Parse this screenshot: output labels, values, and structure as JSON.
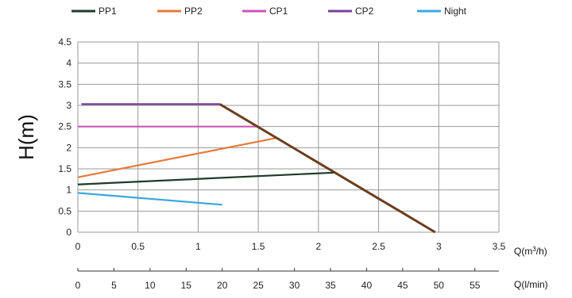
{
  "chart_data": {
    "type": "line",
    "title": "",
    "ylabel": "H(m)",
    "xlabel": "Q(m³/h)",
    "xlabel_secondary": "Q(l/min)",
    "xlim": [
      0,
      3.5
    ],
    "ylim": [
      0,
      4.5
    ],
    "secondary_xlim": [
      0,
      58.33
    ],
    "x_ticks": [
      "0",
      "0.5",
      "1",
      "1.5",
      "2",
      "2.5",
      "3",
      "3.5"
    ],
    "y_ticks": [
      "0",
      "0.5",
      "1",
      "1.5",
      "2",
      "2.5",
      "3",
      "3.5",
      "4",
      "4.5"
    ],
    "secondary_x_ticks": [
      "0",
      "5",
      "10",
      "15",
      "20",
      "25",
      "30",
      "35",
      "40",
      "45",
      "50",
      "55"
    ],
    "grid": true,
    "legend_position": "top",
    "series": [
      {
        "name": "PP1",
        "color": "#1f3a2a",
        "points": [
          [
            0,
            1.13
          ],
          [
            2.13,
            1.41
          ]
        ]
      },
      {
        "name": "PP2",
        "color": "#e8793a",
        "points": [
          [
            0,
            1.3
          ],
          [
            1.65,
            2.23
          ]
        ]
      },
      {
        "name": "CP1",
        "color": "#cc55bb",
        "points": [
          [
            0,
            2.5
          ],
          [
            1.5,
            2.5
          ]
        ]
      },
      {
        "name": "CP2",
        "color": "#7a3f9a",
        "points": [
          [
            0.03,
            3.03
          ],
          [
            1.18,
            3.03
          ]
        ]
      },
      {
        "name": "Night",
        "color": "#3aa8e0",
        "points": [
          [
            0,
            0.93
          ],
          [
            1.2,
            0.65
          ]
        ]
      }
    ],
    "limit_curve": {
      "color": "#6b3d1e",
      "points": [
        [
          1.18,
          3.03
        ],
        [
          2.97,
          0
        ]
      ]
    }
  }
}
